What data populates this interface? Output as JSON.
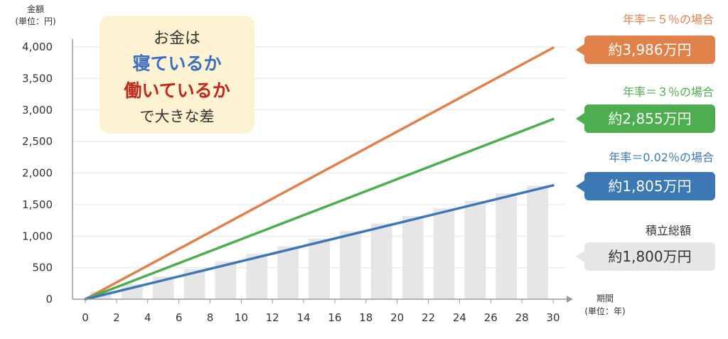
{
  "chart_data": {
    "type": "line",
    "ylabel_line1": "金額",
    "ylabel_line2": "(単位：円)",
    "xlabel_line1": "期間",
    "xlabel_line2": "(単位：年)",
    "yticks": [
      "0",
      "500",
      "1,000",
      "1,500",
      "2,000",
      "2,500",
      "3,000",
      "3,500",
      "4,000"
    ],
    "ylim": [
      0,
      4000
    ],
    "xlim": [
      0,
      30
    ],
    "xticks": [
      "0",
      "2",
      "4",
      "6",
      "8",
      "10",
      "12",
      "14",
      "16",
      "18",
      "20",
      "22",
      "24",
      "26",
      "28",
      "30"
    ],
    "grid": true,
    "series": [
      {
        "name": "年率＝５％の場合",
        "color": "#e0814a",
        "x": [
          0,
          30
        ],
        "values": [
          0,
          3986
        ]
      },
      {
        "name": "年率＝３％の場合",
        "color": "#4cae4f",
        "x": [
          0,
          30
        ],
        "values": [
          0,
          2855
        ]
      },
      {
        "name": "年率＝0.02％の場合",
        "color": "#3b78b4",
        "x": [
          0,
          30
        ],
        "values": [
          0,
          1805
        ]
      }
    ],
    "bars": {
      "name": "積立総額",
      "color": "#e6e6e6",
      "x": [
        2,
        4,
        6,
        8,
        10,
        12,
        14,
        16,
        18,
        20,
        22,
        24,
        26,
        28,
        30
      ],
      "values": [
        120,
        240,
        360,
        480,
        600,
        720,
        840,
        960,
        1080,
        1200,
        1320,
        1440,
        1560,
        1680,
        1800
      ]
    }
  },
  "callout": {
    "line1": "お金は",
    "line2": "寝ているか",
    "line3": "働いているか",
    "line4": "で大きな差"
  },
  "legend": [
    {
      "label": "年率＝５％の場合",
      "badge": "約3,986万円",
      "color": "#e0814a",
      "badge_color": "#e0814a",
      "text_color": "#ffffff"
    },
    {
      "label": "年率＝３％の場合",
      "badge": "約2,855万円",
      "color": "#4cae4f",
      "badge_color": "#4cae4f",
      "text_color": "#ffffff"
    },
    {
      "label": "年率＝0.02％の場合",
      "badge": "約1,805万円",
      "color": "#3b78b4",
      "badge_color": "#3b78b4",
      "text_color": "#ffffff"
    },
    {
      "label": "積立総額",
      "badge": "約1,800万円",
      "color": "#333333",
      "badge_color": "#e6e6e6",
      "text_color": "#333333"
    }
  ]
}
